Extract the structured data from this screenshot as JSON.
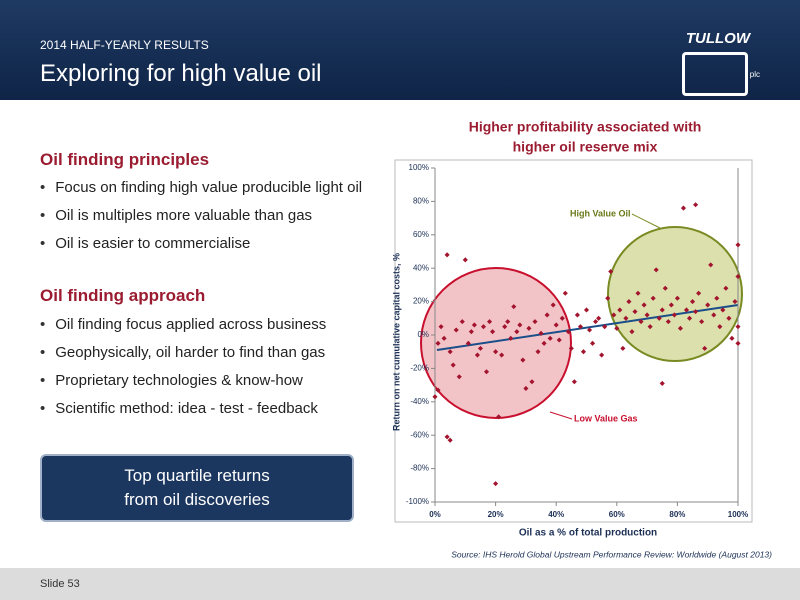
{
  "header": {
    "kicker": "2014 HALF-YEARLY RESULTS",
    "title": "Exploring for high value oil",
    "logo": "TULLOW",
    "logo_suffix": "plc"
  },
  "sections": [
    {
      "heading": "Oil finding principles",
      "bullets": [
        "Focus on finding high value producible light oil",
        "Oil is multiples more valuable than gas",
        "Oil is easier to commercialise"
      ]
    },
    {
      "heading": "Oil finding approach",
      "bullets": [
        "Oil finding focus applied across business",
        "Geophysically, oil harder to find than gas",
        "Proprietary technologies & know-how",
        "Scientific method: idea - test - feedback"
      ]
    }
  ],
  "callout": [
    "Top quartile returns",
    "from oil discoveries"
  ],
  "footer": "Slide 53",
  "chart_data": {
    "type": "scatter",
    "title": [
      "Higher profitability associated with",
      "higher oil reserve mix"
    ],
    "x_label": "Oil as a % of total production",
    "y_label": "Return on net cumulative capital costs, %",
    "source": "Source: IHS Herold Global Upstream Performance Review: Worldwide (August 2013)",
    "annotations": [
      "High Value Oil",
      "Low Value Gas"
    ],
    "color": "#a3142e",
    "xlim": [
      0,
      100
    ],
    "ylim": [
      -100,
      100
    ],
    "xticks": [
      {
        "value": 0,
        "label": "0%"
      },
      {
        "value": 20,
        "label": "20%"
      },
      {
        "value": 40,
        "label": "40%"
      },
      {
        "value": 60,
        "label": "60%"
      },
      {
        "value": 80,
        "label": "80%"
      },
      {
        "value": 100,
        "label": "100%"
      }
    ],
    "yticks": [
      {
        "value": -100,
        "label": "-100%"
      },
      {
        "value": -80,
        "label": "-80%"
      },
      {
        "value": -60,
        "label": "-60%"
      },
      {
        "value": -40,
        "label": "-40%"
      },
      {
        "value": -20,
        "label": "-20%"
      },
      {
        "value": 0,
        "label": "0%"
      },
      {
        "value": 20,
        "label": "20%"
      },
      {
        "value": 40,
        "label": "40%"
      },
      {
        "value": 60,
        "label": "60%"
      },
      {
        "value": 80,
        "label": "80%"
      },
      {
        "value": 100,
        "label": "100%"
      }
    ],
    "x": [
      0,
      1,
      1,
      2,
      3,
      4,
      4,
      5,
      5,
      6,
      7,
      8,
      9,
      10,
      11,
      12,
      13,
      14,
      15,
      16,
      17,
      18,
      19,
      20,
      21,
      20,
      22,
      23,
      24,
      25,
      26,
      27,
      28,
      29,
      30,
      31,
      32,
      33,
      34,
      35,
      36,
      37,
      38,
      39,
      40,
      41,
      42,
      43,
      44,
      45,
      46,
      47,
      48,
      49,
      50,
      51,
      52,
      53,
      54,
      55,
      56,
      57,
      58,
      59,
      60,
      61,
      62,
      63,
      64,
      65,
      66,
      67,
      68,
      69,
      70,
      71,
      72,
      73,
      74,
      75,
      75,
      76,
      77,
      78,
      79,
      80,
      81,
      82,
      83,
      84,
      85,
      86,
      86,
      87,
      88,
      89,
      90,
      91,
      92,
      93,
      94,
      95,
      96,
      97,
      98,
      99,
      100,
      100,
      100,
      100
    ],
    "values": [
      -37,
      -33,
      -5,
      5,
      -2,
      48,
      -61,
      -63,
      -10,
      -18,
      3,
      -25,
      8,
      45,
      -5,
      2,
      6,
      -12,
      -8,
      5,
      -22,
      8,
      2,
      -10,
      -49,
      -89,
      -12,
      5,
      8,
      -2,
      17,
      2,
      6,
      -15,
      -32,
      4,
      -28,
      8,
      -10,
      1,
      -5,
      12,
      -2,
      18,
      6,
      -3,
      10,
      25,
      2,
      -8,
      -28,
      12,
      5,
      -10,
      15,
      3,
      -5,
      8,
      10,
      -12,
      5,
      22,
      38,
      12,
      4,
      15,
      -8,
      10,
      20,
      2,
      14,
      25,
      8,
      18,
      12,
      5,
      22,
      39,
      10,
      -29,
      15,
      28,
      8,
      18,
      12,
      22,
      4,
      76,
      15,
      10,
      20,
      78,
      14,
      25,
      8,
      -8,
      18,
      42,
      12,
      22,
      5,
      15,
      28,
      10,
      -2,
      20,
      54,
      35,
      5,
      -5
    ]
  }
}
